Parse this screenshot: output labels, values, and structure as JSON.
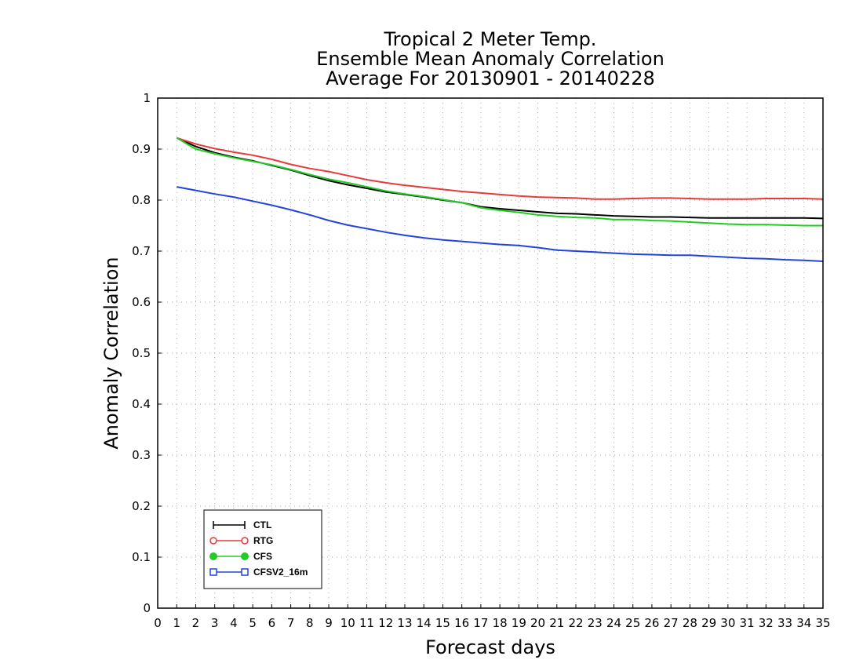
{
  "chart_data": {
    "type": "line",
    "title_lines": [
      "Tropical 2 Meter Temp.",
      "Ensemble Mean Anomaly Correlation",
      "Average For 20130901 - 20140228"
    ],
    "xlabel": "Forecast days",
    "ylabel": "Anomaly Correlation",
    "xlim": [
      0,
      35
    ],
    "ylim": [
      0,
      1
    ],
    "x_ticks": [
      0,
      1,
      2,
      3,
      4,
      5,
      6,
      7,
      8,
      9,
      10,
      11,
      12,
      13,
      14,
      15,
      16,
      17,
      18,
      19,
      20,
      21,
      22,
      23,
      24,
      25,
      26,
      27,
      28,
      29,
      30,
      31,
      32,
      33,
      34,
      35
    ],
    "y_ticks": [
      "0",
      "0.1",
      "0.2",
      "0.3",
      "0.4",
      "0.5",
      "0.6",
      "0.7",
      "0.8",
      "0.9",
      "1"
    ],
    "grid": true,
    "legend_position": "bottom-left",
    "x": [
      1,
      2,
      3,
      4,
      5,
      6,
      7,
      8,
      9,
      10,
      11,
      12,
      13,
      14,
      15,
      16,
      17,
      18,
      19,
      20,
      21,
      22,
      23,
      24,
      25,
      26,
      27,
      28,
      29,
      30,
      31,
      32,
      33,
      34,
      35
    ],
    "series": [
      {
        "name": "CTL",
        "color": "#000000",
        "marker": "plus",
        "values": [
          0.922,
          0.905,
          0.893,
          0.884,
          0.877,
          0.868,
          0.859,
          0.848,
          0.838,
          0.83,
          0.823,
          0.816,
          0.811,
          0.806,
          0.8,
          0.795,
          0.787,
          0.783,
          0.78,
          0.777,
          0.774,
          0.773,
          0.771,
          0.769,
          0.768,
          0.767,
          0.767,
          0.766,
          0.765,
          0.765,
          0.765,
          0.765,
          0.765,
          0.765,
          0.764
        ]
      },
      {
        "name": "RTG",
        "color": "#e83a3a",
        "marker": "circle-open",
        "values": [
          0.922,
          0.91,
          0.901,
          0.894,
          0.888,
          0.88,
          0.87,
          0.862,
          0.856,
          0.848,
          0.84,
          0.834,
          0.829,
          0.825,
          0.821,
          0.817,
          0.814,
          0.811,
          0.808,
          0.806,
          0.805,
          0.804,
          0.802,
          0.802,
          0.803,
          0.804,
          0.804,
          0.803,
          0.802,
          0.802,
          0.802,
          0.803,
          0.803,
          0.803,
          0.802
        ]
      },
      {
        "name": "CFS",
        "color": "#22cc22",
        "marker": "circle-filled",
        "values": [
          0.922,
          0.9,
          0.891,
          0.883,
          0.876,
          0.869,
          0.86,
          0.85,
          0.841,
          0.834,
          0.826,
          0.818,
          0.812,
          0.807,
          0.801,
          0.795,
          0.785,
          0.78,
          0.776,
          0.771,
          0.768,
          0.766,
          0.765,
          0.762,
          0.762,
          0.76,
          0.759,
          0.757,
          0.755,
          0.753,
          0.752,
          0.752,
          0.751,
          0.75,
          0.75
        ]
      },
      {
        "name": "CFSV2_16m",
        "color": "#2244dd",
        "marker": "square-open",
        "values": [
          0.826,
          0.819,
          0.812,
          0.806,
          0.798,
          0.79,
          0.781,
          0.771,
          0.76,
          0.751,
          0.744,
          0.737,
          0.731,
          0.726,
          0.722,
          0.719,
          0.716,
          0.713,
          0.711,
          0.707,
          0.702,
          0.7,
          0.698,
          0.696,
          0.694,
          0.693,
          0.692,
          0.692,
          0.69,
          0.688,
          0.686,
          0.685,
          0.683,
          0.682,
          0.68
        ]
      }
    ]
  }
}
